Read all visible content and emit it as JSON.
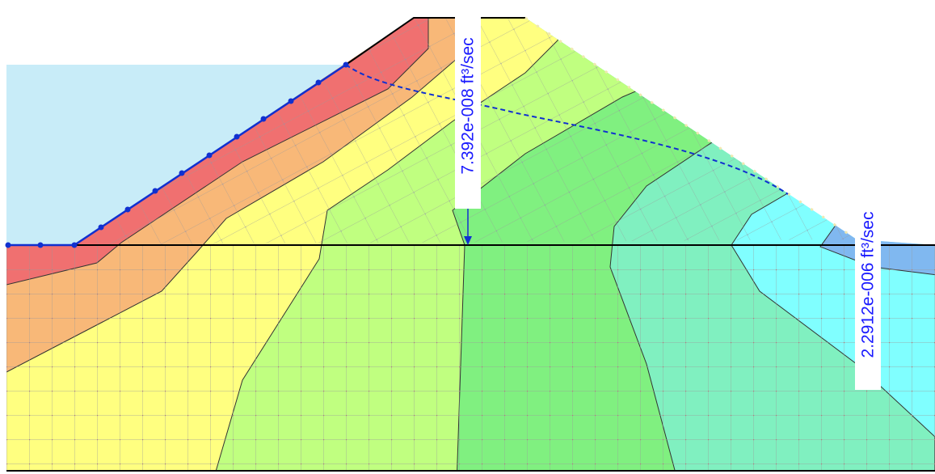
{
  "flux_labels": [
    "7.392e-008 ft³/sec",
    "2.2912e-006 ft³/sec"
  ]
}
